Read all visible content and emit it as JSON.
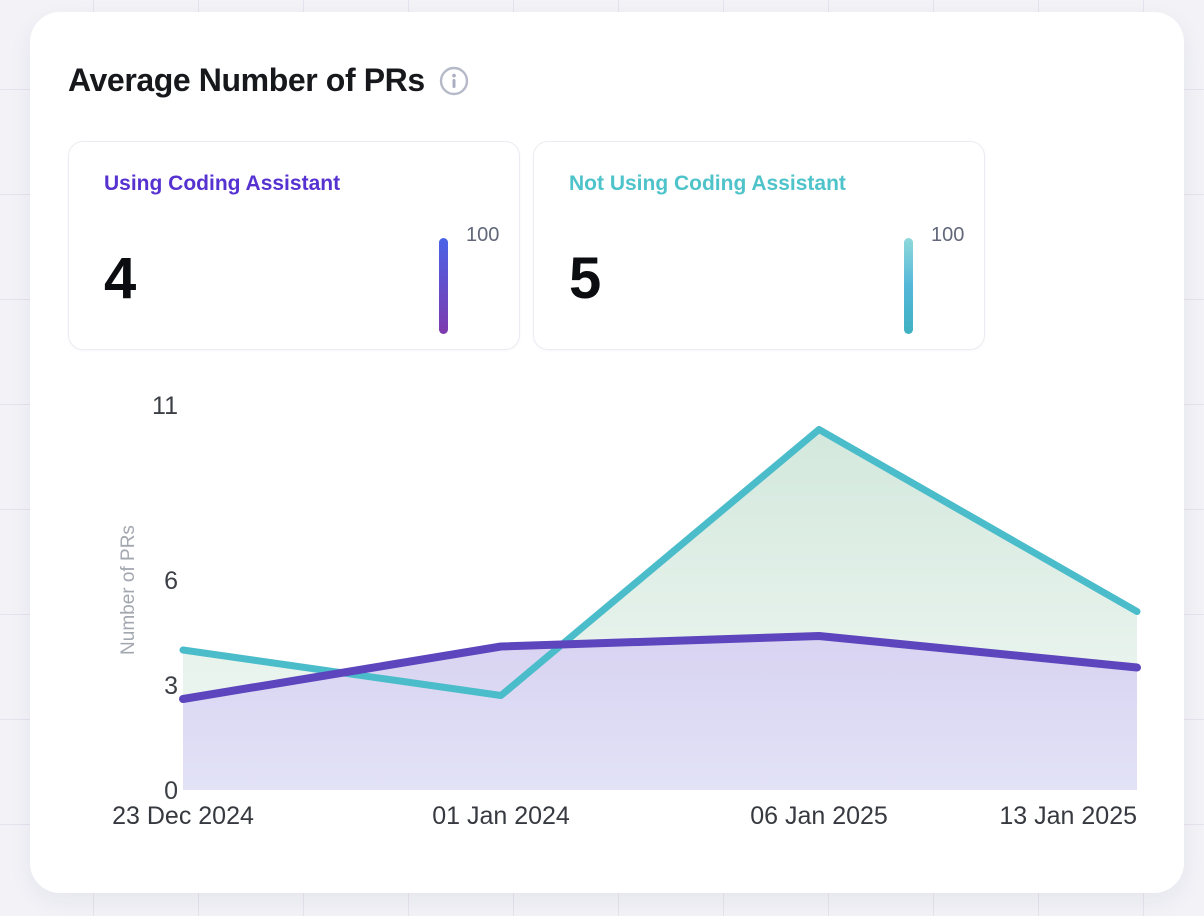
{
  "header": {
    "title": "Average Number of PRs",
    "info_icon": "info-icon"
  },
  "stat_cards": [
    {
      "label": "Using Coding Assistant",
      "value": "4",
      "scale_label": "100",
      "accent": "#5633d1",
      "bar_gradient": [
        "#4a63e7",
        "#7d3aad"
      ]
    },
    {
      "label": "Not Using Coding Assistant",
      "value": "5",
      "scale_label": "100",
      "accent": "#4fc3ca",
      "bar_gradient": [
        "#8ed9db",
        "#54b7d9",
        "#3eb1c1"
      ]
    }
  ],
  "chart_data": {
    "type": "area",
    "x": [
      "23 Dec 2024",
      "01 Jan 2024",
      "06 Jan 2025",
      "13 Jan 2025"
    ],
    "series": [
      {
        "name": "Using Coding Assistant",
        "values": [
          2.6,
          4.1,
          4.4,
          3.5
        ],
        "line_color": "#5c45bd",
        "fill_top": "#d8d3f1",
        "fill_bottom": "#e2e2f7"
      },
      {
        "name": "Not Using Coding Assistant",
        "values": [
          4.0,
          2.7,
          10.3,
          5.1
        ],
        "line_color": "#4bbcca",
        "fill_top": "#d3e8dd",
        "fill_bottom": "#f3f9f5"
      }
    ],
    "ylabel": "Number of PRs",
    "yticks": [
      0,
      3,
      6,
      11
    ],
    "ylim": [
      0,
      11
    ],
    "grid": false,
    "legend_position": "none"
  }
}
